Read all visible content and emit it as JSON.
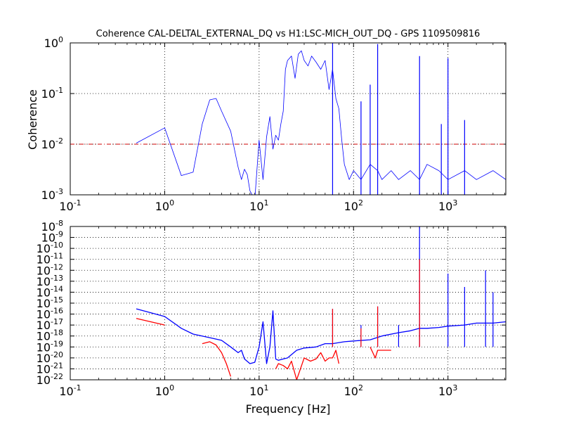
{
  "chart_data": [
    {
      "type": "line",
      "title": "Coherence CAL-DELTAL_EXTERNAL_DQ vs H1:LSC-MICH_OUT_DQ - GPS 1109509816",
      "xlabel": "",
      "ylabel": "Coherence",
      "xscale": "log",
      "yscale": "log",
      "xlim": [
        0.1,
        4096
      ],
      "ylim": [
        0.001,
        1
      ],
      "grid": true,
      "x_ticks": [
        "10^-1",
        "10^0",
        "10^1",
        "10^2",
        "10^3"
      ],
      "y_ticks": [
        "10^-3",
        "10^-2",
        "10^-1",
        "10^0"
      ],
      "reference_line": {
        "y": 0.01,
        "color": "#cc0000",
        "style": "dash-dot"
      },
      "series": [
        {
          "color": "#0000ff",
          "x": [
            0.5,
            1.0,
            1.5,
            2.0,
            2.5,
            3.0,
            3.5,
            4.0,
            5.0,
            6.0,
            6.5,
            7.0,
            7.5,
            8.0,
            9.0,
            10,
            11,
            12,
            13,
            14,
            15,
            16,
            17,
            18,
            19,
            20,
            22,
            24,
            26,
            28,
            30,
            33,
            36,
            40,
            45,
            50,
            55,
            60,
            65,
            70,
            75,
            80,
            90,
            100,
            120,
            150,
            180,
            200,
            250,
            300,
            400,
            500,
            600,
            800,
            1000,
            1500,
            2000,
            3000,
            4096
          ],
          "y": [
            0.0105,
            0.021,
            0.0024,
            0.0028,
            0.025,
            0.075,
            0.08,
            0.045,
            0.018,
            0.0035,
            0.002,
            0.0032,
            0.0025,
            0.0012,
            0.0008,
            0.012,
            0.002,
            0.014,
            0.035,
            0.008,
            0.015,
            0.012,
            0.025,
            0.045,
            0.3,
            0.45,
            0.55,
            0.2,
            0.6,
            0.7,
            0.45,
            0.35,
            0.55,
            0.42,
            0.3,
            0.45,
            0.12,
            0.3,
            0.08,
            0.05,
            0.012,
            0.004,
            0.002,
            0.003,
            0.002,
            0.004,
            0.003,
            0.002,
            0.003,
            0.002,
            0.003,
            0.002,
            0.004,
            0.003,
            0.002,
            0.003,
            0.002,
            0.003,
            0.002
          ]
        }
      ],
      "peaks": [
        {
          "x": 60,
          "y": 1.0
        },
        {
          "x": 180,
          "y": 0.95
        },
        {
          "x": 150,
          "y": 0.15
        },
        {
          "x": 500,
          "y": 0.55
        },
        {
          "x": 1000,
          "y": 0.5
        },
        {
          "x": 120,
          "y": 0.07
        },
        {
          "x": 850,
          "y": 0.025
        },
        {
          "x": 1500,
          "y": 0.03
        }
      ]
    },
    {
      "type": "line",
      "title": "",
      "xlabel": "Frequency [Hz]",
      "ylabel": "",
      "xscale": "log",
      "yscale": "log",
      "xlim": [
        0.1,
        4096
      ],
      "ylim": [
        1e-22,
        1e-08
      ],
      "grid": true,
      "x_ticks": [
        "10^-1",
        "10^0",
        "10^1",
        "10^2",
        "10^3"
      ],
      "y_ticks": [
        "10^-22",
        "10^-21",
        "10^-20",
        "10^-19",
        "10^-18",
        "10^-17",
        "10^-16",
        "10^-15",
        "10^-14",
        "10^-13",
        "10^-12",
        "10^-11",
        "10^-10",
        "10^-9",
        "10^-8"
      ],
      "series": [
        {
          "color": "#0000ff",
          "x": [
            0.5,
            1.0,
            1.5,
            2.0,
            3.0,
            4.0,
            5.0,
            6.0,
            6.5,
            7.0,
            8.0,
            9.0,
            10,
            11,
            12,
            13,
            14,
            15,
            16,
            18,
            20,
            25,
            30,
            40,
            50,
            60,
            70,
            80,
            100,
            150,
            200,
            300,
            400,
            500,
            600,
            800,
            1000,
            1500,
            2000,
            3000,
            4096
          ],
          "y": [
            3e-16,
            6e-17,
            5e-18,
            1.5e-18,
            7e-19,
            4e-19,
            1e-19,
            3e-20,
            5e-20,
            8e-21,
            3e-21,
            4e-21,
            1e-19,
            2e-17,
            3e-21,
            1e-19,
            2e-16,
            8e-21,
            6e-21,
            8e-21,
            1e-20,
            5e-20,
            8e-20,
            1e-19,
            2e-19,
            2e-19,
            2.5e-19,
            3e-19,
            3.5e-19,
            4.5e-19,
            1e-18,
            2e-18,
            3e-18,
            5e-18,
            5e-18,
            6e-18,
            8e-18,
            1e-17,
            1.5e-17,
            1.5e-17,
            2e-17
          ]
        },
        {
          "color": "#ff0000",
          "x": [
            0.5,
            1.0
          ],
          "y": [
            4e-17,
            1e-17
          ]
        },
        {
          "color": "#ff0000",
          "x": [
            2.5,
            3.0,
            3.5,
            4.0,
            4.5,
            5.0
          ],
          "y": [
            2e-19,
            3e-19,
            1.5e-19,
            3e-20,
            3e-21,
            2e-22
          ]
        },
        {
          "color": "#ff0000",
          "x": [
            15,
            16,
            18,
            20,
            22,
            25,
            30,
            35,
            40,
            45,
            50,
            55,
            60,
            65,
            70
          ],
          "y": [
            1e-21,
            3e-21,
            2e-21,
            1e-21,
            5e-21,
            1e-22,
            1e-20,
            5e-21,
            8e-21,
            3e-20,
            5e-21,
            1e-20,
            1e-20,
            5e-20,
            3e-21
          ]
        },
        {
          "color": "#ff0000",
          "x": [
            150,
            160,
            170,
            180,
            200,
            250
          ],
          "y": [
            1e-19,
            3e-20,
            1e-20,
            5e-20,
            5e-20,
            5e-20
          ]
        }
      ],
      "peaks": [
        {
          "x": 500,
          "y": 1e-08,
          "color": "#0000ff"
        },
        {
          "x": 60,
          "y": 3e-16,
          "color": "#0000ff"
        },
        {
          "x": 120,
          "y": 1e-17,
          "color": "#0000ff"
        },
        {
          "x": 180,
          "y": 5e-16,
          "color": "#0000ff"
        },
        {
          "x": 300,
          "y": 1e-17,
          "color": "#0000ff"
        },
        {
          "x": 1000,
          "y": 5e-13,
          "color": "#0000ff"
        },
        {
          "x": 1500,
          "y": 3e-14,
          "color": "#0000ff"
        },
        {
          "x": 2500,
          "y": 1e-12,
          "color": "#0000ff"
        },
        {
          "x": 3000,
          "y": 1e-14,
          "color": "#0000ff"
        },
        {
          "x": 500,
          "y": 1e-11,
          "color": "#ff0000"
        },
        {
          "x": 60,
          "y": 3e-16,
          "color": "#ff0000"
        },
        {
          "x": 120,
          "y": 5e-18,
          "color": "#ff0000"
        },
        {
          "x": 180,
          "y": 5e-16,
          "color": "#ff0000"
        }
      ]
    }
  ]
}
